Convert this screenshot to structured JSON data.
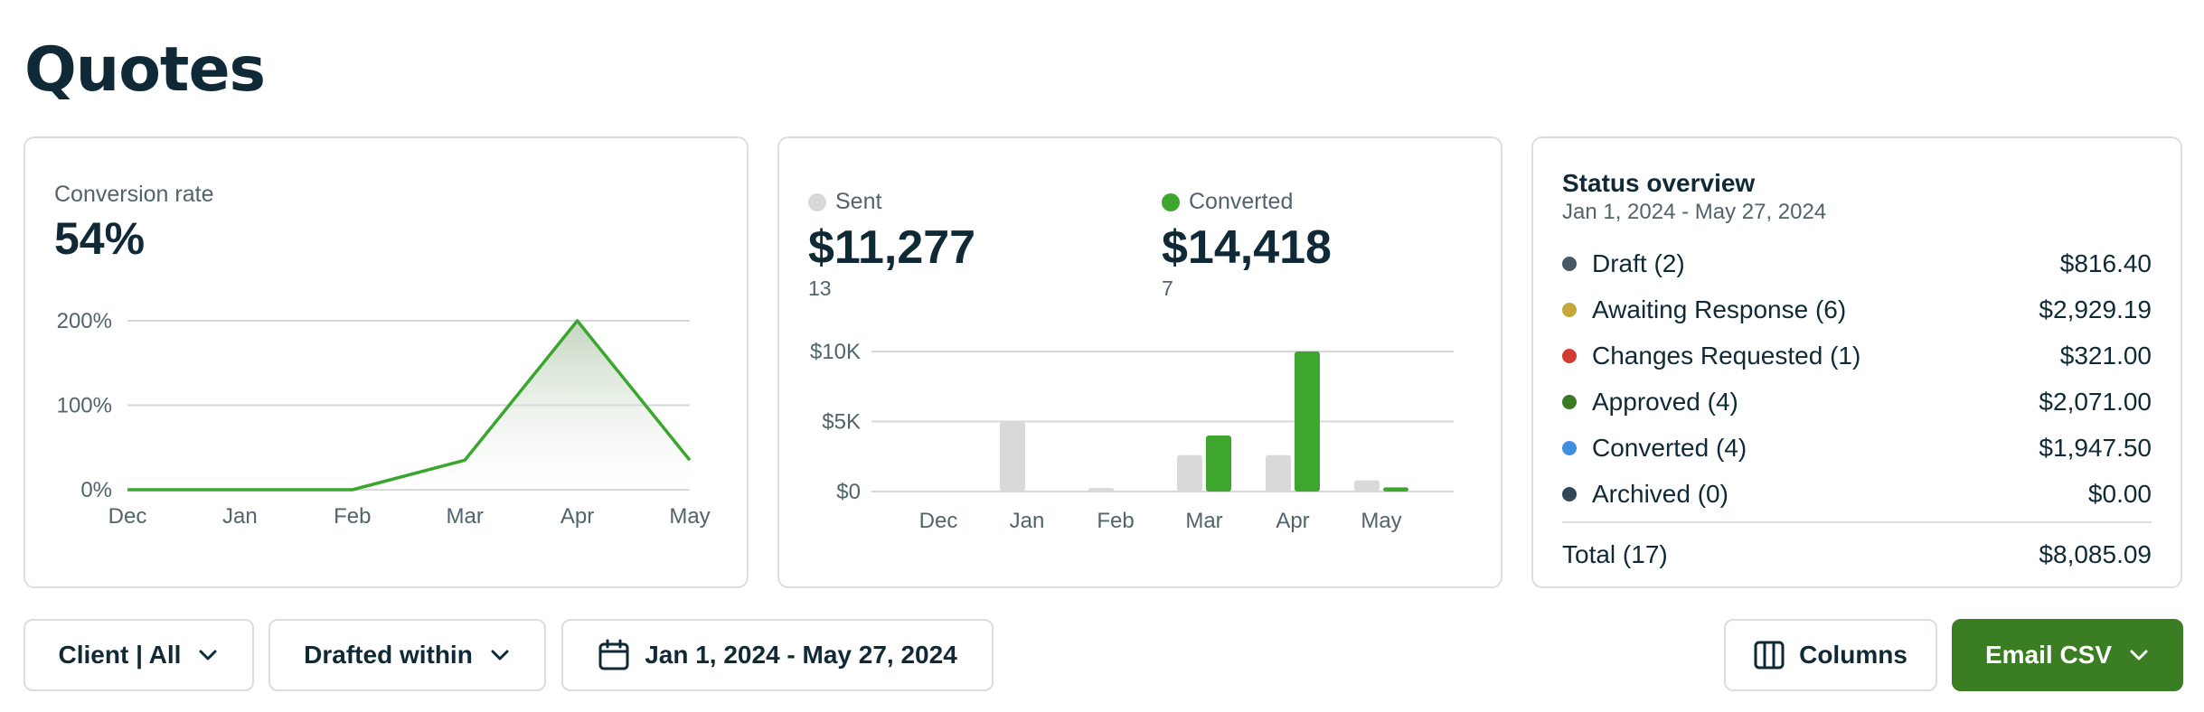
{
  "page": {
    "title": "Quotes"
  },
  "conversion": {
    "label": "Conversion rate",
    "value": "54%",
    "chart_data": {
      "type": "area",
      "categories": [
        "Dec",
        "Jan",
        "Feb",
        "Mar",
        "Apr",
        "May"
      ],
      "values": [
        0,
        0,
        0,
        35,
        200,
        35
      ],
      "yticks": [
        "0%",
        "100%",
        "200%"
      ],
      "ylim": [
        0,
        200
      ],
      "grid": true,
      "color": "#3aa62e"
    }
  },
  "sent_converted": {
    "sent": {
      "legend": "Sent",
      "amount": "$11,277",
      "count": "13",
      "color": "#d9d9d9"
    },
    "converted": {
      "legend": "Converted",
      "amount": "$14,418",
      "count": "7",
      "color": "#3ea52f"
    },
    "chart_data": {
      "type": "bar",
      "categories": [
        "Dec",
        "Jan",
        "Feb",
        "Mar",
        "Apr",
        "May"
      ],
      "yticks": [
        "$0",
        "$5K",
        "$10K"
      ],
      "ylim": [
        0,
        10000
      ],
      "grid": true,
      "series": [
        {
          "name": "Sent",
          "values": [
            0,
            5000,
            250,
            2600,
            2600,
            800
          ],
          "color": "#d9d9d9"
        },
        {
          "name": "Converted",
          "values": [
            0,
            0,
            0,
            4000,
            10000,
            300
          ],
          "color": "#3ea52f"
        }
      ]
    }
  },
  "status_overview": {
    "title": "Status overview",
    "range": "Jan 1, 2024 - May 27, 2024",
    "items": [
      {
        "label": "Draft (2)",
        "value": "$816.40",
        "color": "#475965"
      },
      {
        "label": "Awaiting Response (6)",
        "value": "$2,929.19",
        "color": "#c4a93a"
      },
      {
        "label": "Changes Requested (1)",
        "value": "$321.00",
        "color": "#d23b2f"
      },
      {
        "label": "Approved (4)",
        "value": "$2,071.00",
        "color": "#3a7a23"
      },
      {
        "label": "Converted (4)",
        "value": "$1,947.50",
        "color": "#3f8ee0"
      },
      {
        "label": "Archived (0)",
        "value": "$0.00",
        "color": "#34485a"
      }
    ],
    "total_label": "Total (17)",
    "total_value": "$8,085.09"
  },
  "toolbar": {
    "client_label": "Client | All",
    "drafted_label": "Drafted within",
    "date_label": "Jan 1, 2024 - May 27, 2024",
    "columns_label": "Columns",
    "email_label": "Email CSV",
    "icons": {
      "chevron": "chevron-down-icon",
      "calendar": "calendar-icon",
      "columns": "columns-icon"
    }
  }
}
